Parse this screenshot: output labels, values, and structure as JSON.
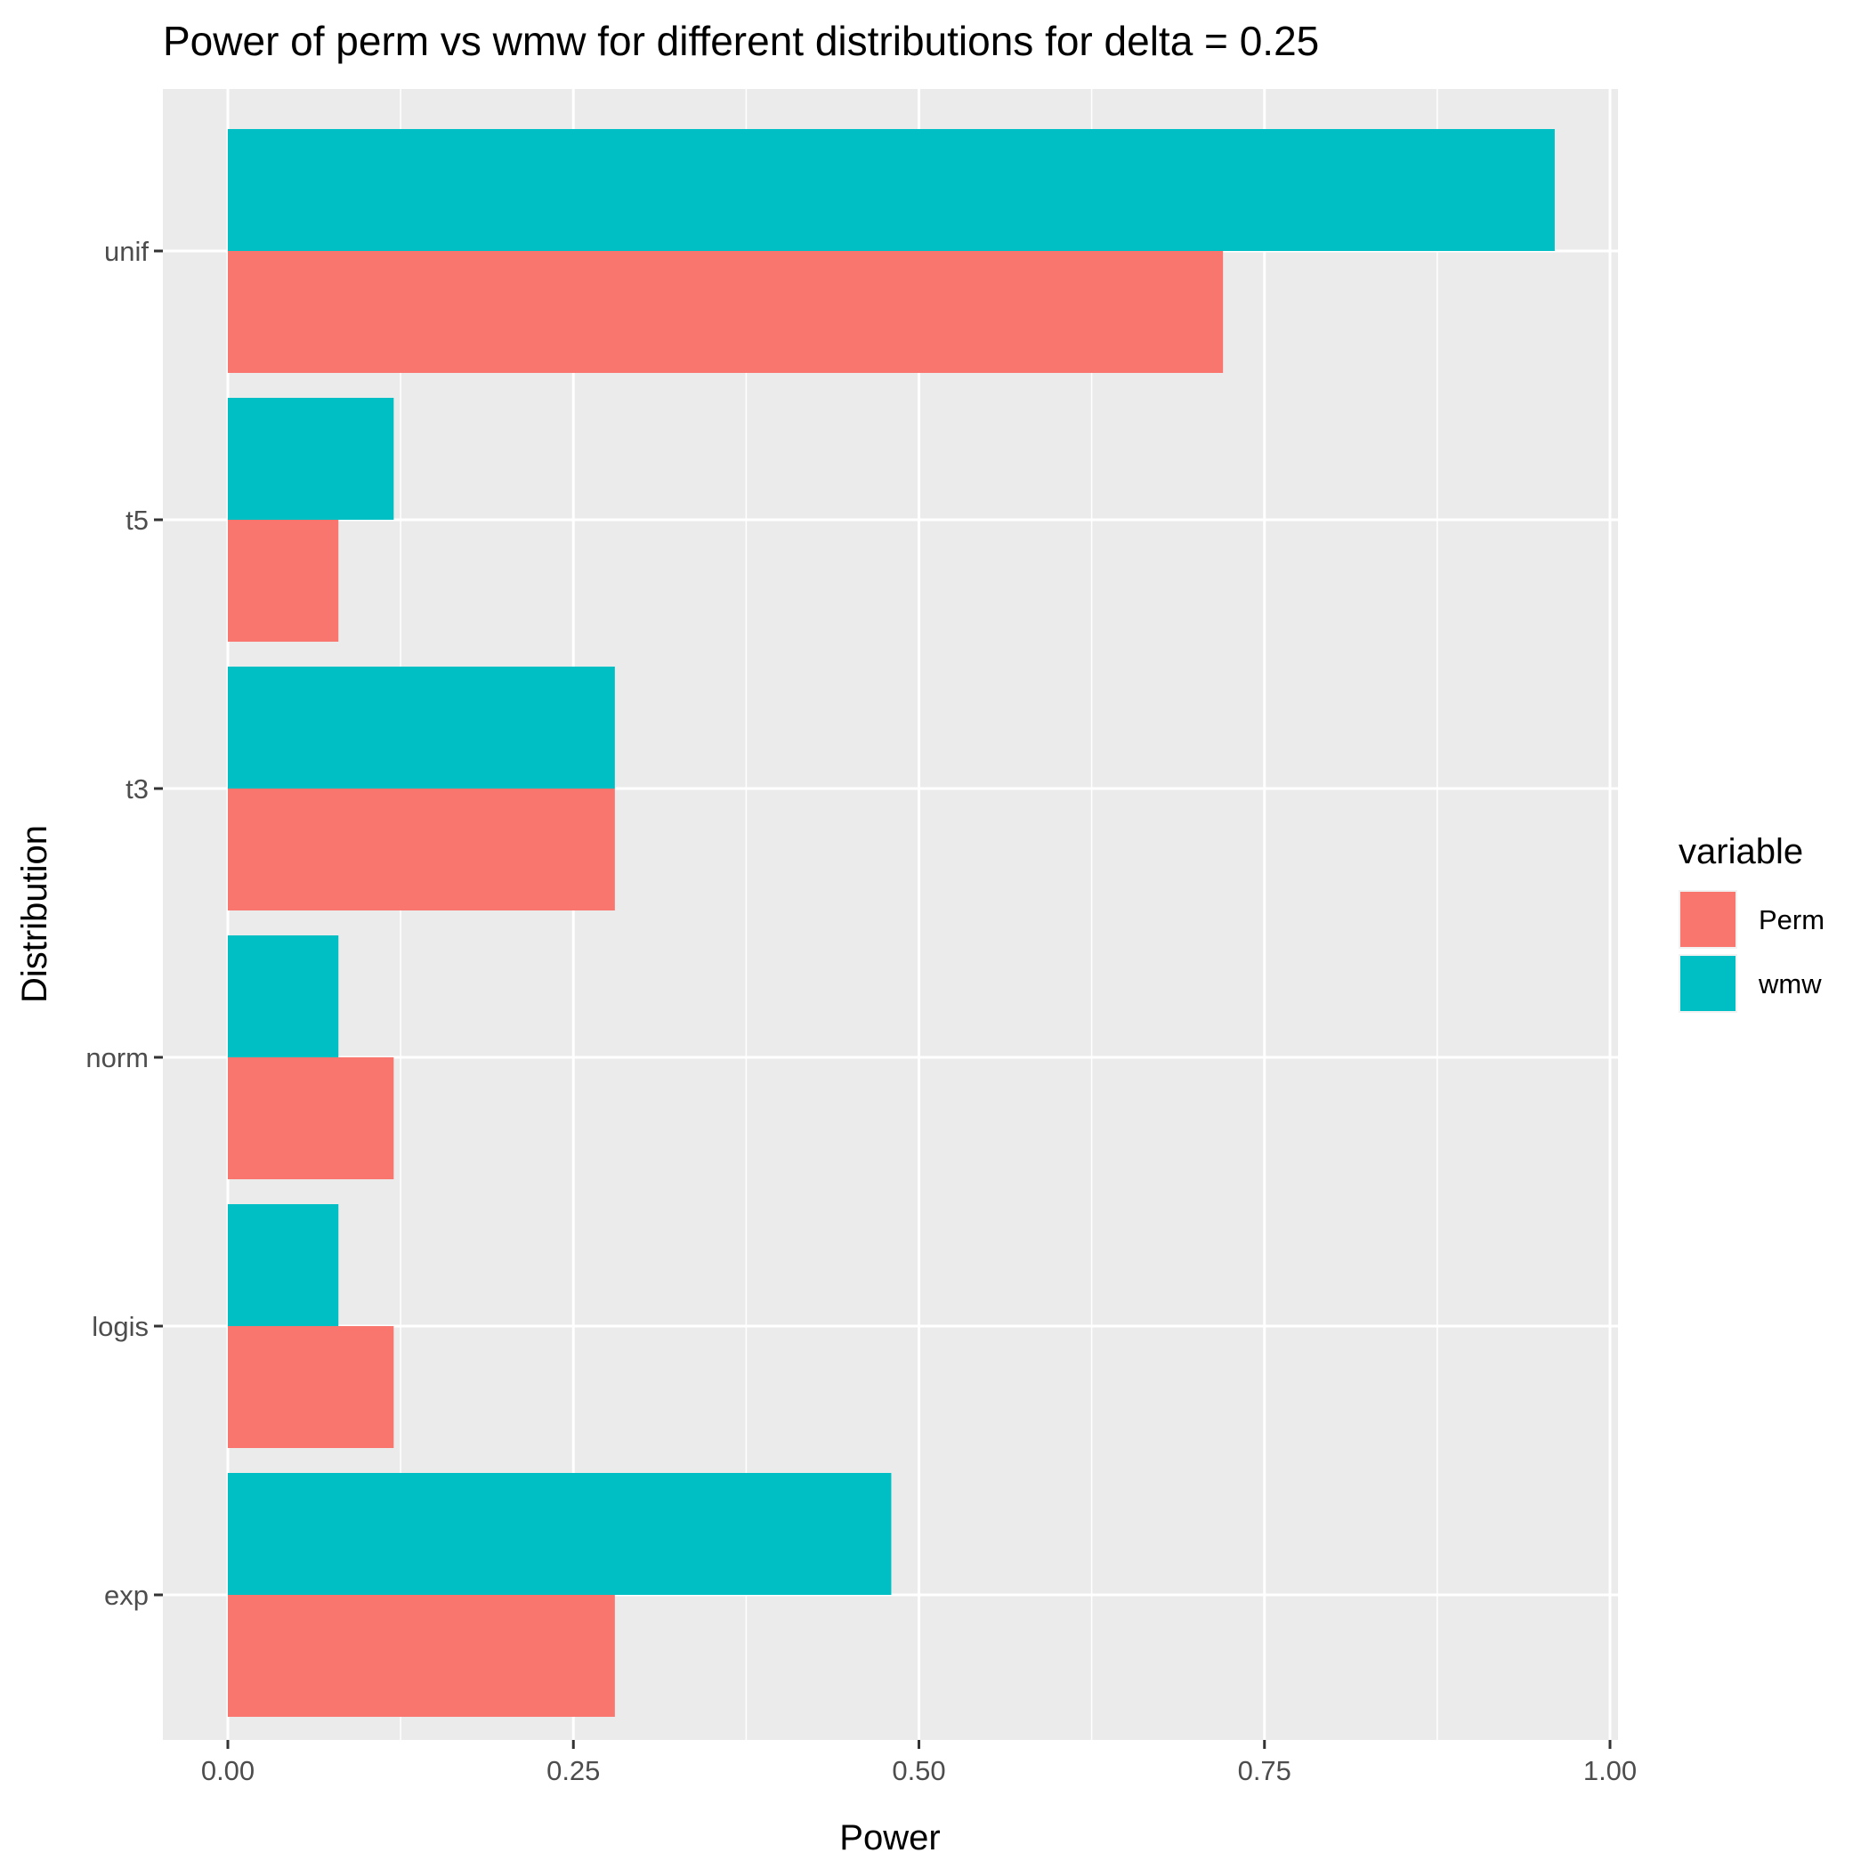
{
  "chart_data": {
    "type": "bar",
    "orientation": "horizontal",
    "title": "Power of perm vs wmw for different distributions for delta =  0.25",
    "xlabel": "Power",
    "ylabel": "Distribution",
    "xlim": [
      0,
      1
    ],
    "x_ticks": [
      "0.00",
      "0.25",
      "0.50",
      "0.75",
      "1.00"
    ],
    "categories": [
      "unif",
      "t5",
      "t3",
      "norm",
      "logis",
      "exp"
    ],
    "series": [
      {
        "name": "Perm",
        "color": "#F8766D",
        "values": [
          0.72,
          0.08,
          0.28,
          0.12,
          0.12,
          0.28
        ]
      },
      {
        "name": "wmw",
        "color": "#00BFC4",
        "values": [
          0.96,
          0.12,
          0.28,
          0.08,
          0.08,
          0.48
        ]
      }
    ],
    "legend": {
      "title": "variable",
      "position": "right"
    },
    "grid": true,
    "panel_background": "#EBEBEB",
    "grid_color": "#FFFFFF"
  }
}
